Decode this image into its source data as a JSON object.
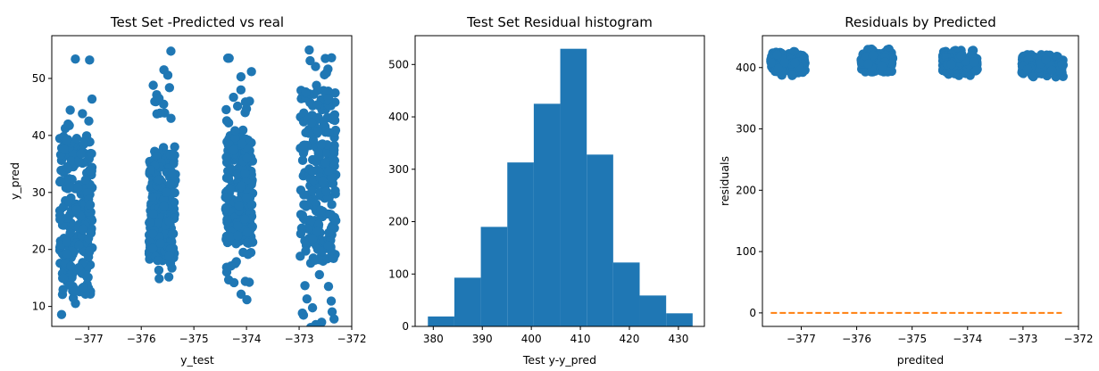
{
  "chart_data": [
    {
      "type": "scatter",
      "title": "Test Set -Predicted vs real",
      "xlabel": "y_test",
      "ylabel": "y_pred",
      "xlim": [
        -377.7,
        -372.0
      ],
      "ylim": [
        6.5,
        57.5
      ],
      "xticks": [
        -377,
        -376,
        -375,
        -374,
        -373,
        -372
      ],
      "xtick_labels": [
        "−377",
        "−376",
        "−375",
        "−374",
        "−373",
        "−372"
      ],
      "yticks": [
        10,
        20,
        30,
        40,
        50
      ],
      "yticks_labels": [
        "10",
        "20",
        "30",
        "40",
        "50"
      ],
      "color": "#1f77b4",
      "clusters": [
        {
          "x_range": [
            -377.55,
            -376.93
          ],
          "y_range": [
            8,
            55
          ],
          "dense_y": [
            12,
            40
          ]
        },
        {
          "x_range": [
            -375.85,
            -375.35
          ],
          "y_range": [
            13.5,
            55
          ],
          "dense_y": [
            18,
            37
          ]
        },
        {
          "x_range": [
            -374.4,
            -373.88
          ],
          "y_range": [
            11,
            54
          ],
          "dense_y": [
            21,
            40
          ]
        },
        {
          "x_range": [
            -372.98,
            -372.3
          ],
          "y_range": [
            6,
            55
          ],
          "dense_y": [
            18,
            48
          ]
        }
      ]
    },
    {
      "type": "bar",
      "title": "Test Set Residual histogram",
      "xlabel": "Test y-y_pred",
      "ylabel": "",
      "xlim": [
        376.3,
        435.3
      ],
      "ylim": [
        0,
        555
      ],
      "xticks": [
        380,
        390,
        400,
        410,
        420,
        430
      ],
      "xtick_labels": [
        "380",
        "390",
        "400",
        "410",
        "420",
        "430"
      ],
      "yticks": [
        0,
        100,
        200,
        300,
        400,
        500
      ],
      "yticks_labels": [
        "0",
        "100",
        "200",
        "300",
        "400",
        "500"
      ],
      "bin_edges": [
        378.9,
        384.3,
        389.7,
        395.1,
        400.5,
        405.9,
        411.3,
        416.7,
        422.1,
        427.5,
        432.9
      ],
      "values": [
        19,
        93,
        190,
        313,
        425,
        530,
        328,
        122,
        59,
        25
      ],
      "color": "#1f77b4"
    },
    {
      "type": "scatter",
      "title": "Residuals by Predicted",
      "xlabel": "predited",
      "ylabel": "residuals",
      "xlim": [
        -377.7,
        -372.0
      ],
      "ylim": [
        -22,
        452
      ],
      "xticks": [
        -377,
        -376,
        -375,
        -374,
        -373,
        -372
      ],
      "xtick_labels": [
        "−377",
        "−376",
        "−375",
        "−374",
        "−373",
        "−372"
      ],
      "yticks": [
        0,
        100,
        200,
        300,
        400
      ],
      "yticks_labels": [
        "0",
        "100",
        "200",
        "300",
        "400"
      ],
      "color": "#1f77b4",
      "clusters": [
        {
          "x_range": [
            -377.55,
            -376.93
          ],
          "y_range": [
            387,
            430
          ]
        },
        {
          "x_range": [
            -375.92,
            -375.35
          ],
          "y_range": [
            393,
            430
          ]
        },
        {
          "x_range": [
            -374.45,
            -373.82
          ],
          "y_range": [
            386,
            428
          ]
        },
        {
          "x_range": [
            -373.02,
            -372.27
          ],
          "y_range": [
            380,
            428
          ]
        }
      ],
      "zero_line": {
        "x": [
          -377.55,
          -372.3
        ],
        "y": [
          0,
          0
        ],
        "style": "dashed",
        "color": "#ff7f0e"
      }
    }
  ]
}
